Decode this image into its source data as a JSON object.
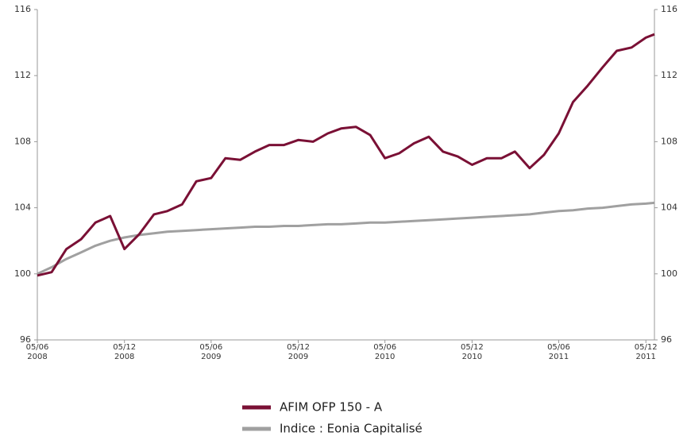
{
  "chart_data": {
    "type": "line",
    "x": [
      "2008-06-05",
      "2008-07-05",
      "2008-08-05",
      "2008-09-05",
      "2008-10-05",
      "2008-11-05",
      "2008-12-05",
      "2009-01-05",
      "2009-02-05",
      "2009-03-05",
      "2009-04-05",
      "2009-05-05",
      "2009-06-05",
      "2009-07-05",
      "2009-08-05",
      "2009-09-05",
      "2009-10-05",
      "2009-11-05",
      "2009-12-05",
      "2010-01-05",
      "2010-02-05",
      "2010-03-05",
      "2010-04-05",
      "2010-05-05",
      "2010-06-05",
      "2010-07-05",
      "2010-08-05",
      "2010-09-05",
      "2010-10-05",
      "2010-11-05",
      "2010-12-05",
      "2011-01-05",
      "2011-02-05",
      "2011-03-05",
      "2011-04-05",
      "2011-05-05",
      "2011-06-05",
      "2011-07-05",
      "2011-08-05",
      "2011-09-05",
      "2011-10-05",
      "2011-11-05",
      "2011-12-05",
      "2011-12-23"
    ],
    "series": [
      {
        "name": "AFIM OFP 150 - A",
        "color": "#7a1035",
        "values": [
          99.9,
          100.1,
          101.5,
          102.1,
          103.1,
          103.5,
          101.5,
          102.4,
          103.6,
          103.8,
          104.2,
          105.6,
          105.8,
          107.0,
          106.9,
          107.4,
          107.8,
          107.8,
          108.1,
          108.0,
          108.5,
          108.8,
          108.9,
          108.4,
          107.0,
          107.3,
          107.9,
          108.3,
          107.4,
          107.1,
          106.6,
          107.0,
          107.0,
          107.4,
          106.4,
          107.2,
          108.5,
          110.4,
          111.4,
          112.5,
          113.5,
          113.7,
          114.3,
          114.5
        ]
      },
      {
        "name": "Indice : Eonia Capitalisé",
        "color": "#a0a0a0",
        "values": [
          100.0,
          100.4,
          100.9,
          101.3,
          101.7,
          102.0,
          102.2,
          102.35,
          102.45,
          102.55,
          102.6,
          102.65,
          102.7,
          102.75,
          102.8,
          102.85,
          102.85,
          102.9,
          102.9,
          102.95,
          103.0,
          103.0,
          103.05,
          103.1,
          103.1,
          103.15,
          103.2,
          103.25,
          103.3,
          103.35,
          103.4,
          103.45,
          103.5,
          103.55,
          103.6,
          103.7,
          103.8,
          103.85,
          103.95,
          104.0,
          104.1,
          104.2,
          104.25,
          104.3
        ]
      }
    ],
    "xlim": [
      "2008-06-05",
      "2011-12-23"
    ],
    "xticks": [
      {
        "value": "2008-06-05",
        "label": "05/06 2008"
      },
      {
        "value": "2008-12-05",
        "label": "05/12 2008"
      },
      {
        "value": "2009-06-05",
        "label": "05/06 2009"
      },
      {
        "value": "2009-12-05",
        "label": "05/12 2009"
      },
      {
        "value": "2010-06-05",
        "label": "05/06 2010"
      },
      {
        "value": "2010-12-05",
        "label": "05/12 2010"
      },
      {
        "value": "2011-06-05",
        "label": "05/06 2011"
      },
      {
        "value": "2011-12-05",
        "label": "05/12 2011"
      }
    ],
    "ylim": [
      96,
      116
    ],
    "yticks": [
      96,
      100,
      104,
      108,
      112,
      116
    ]
  }
}
